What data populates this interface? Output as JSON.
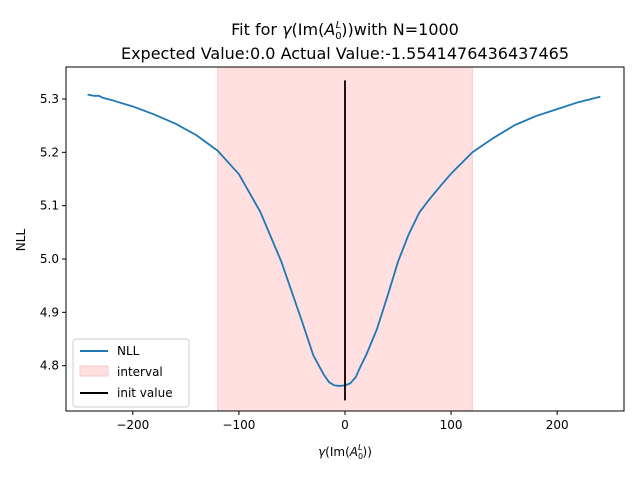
{
  "chart_data": {
    "type": "line",
    "title": {
      "prefix": "Fit for ",
      "gamma": "γ",
      "open": "(Im(",
      "sym": "A",
      "sub": "0",
      "sup": "L",
      "close": "))with N=1000"
    },
    "subtitle": "Expected Value:0.0 Actual Value:-1.5541476436437465",
    "xlabel": {
      "gamma": "γ",
      "open": "(Im(",
      "sym": "A",
      "sub": "0",
      "sup": "L",
      "close": "))"
    },
    "ylabel": "NLL",
    "xlim": [
      -263,
      263
    ],
    "ylim": [
      4.715,
      5.36
    ],
    "xticks": [
      -200,
      -100,
      0,
      100,
      200
    ],
    "xtick_labels": [
      "−200",
      "−100",
      "0",
      "100",
      "200"
    ],
    "yticks": [
      4.8,
      4.9,
      5.0,
      5.1,
      5.2,
      5.3
    ],
    "ytick_labels": [
      "4.8",
      "4.9",
      "5.0",
      "5.1",
      "5.2",
      "5.3"
    ],
    "grid": false,
    "legend_position": "lower-left",
    "series": [
      {
        "name": "NLL",
        "color": "#1f77b4",
        "x": [
          -242,
          -237,
          -232,
          -228,
          -220,
          -200,
          -180,
          -160,
          -140,
          -120,
          -100,
          -80,
          -60,
          -40,
          -30,
          -20,
          -15,
          -10,
          -5,
          0,
          5,
          10,
          15,
          20,
          30,
          40,
          50,
          60,
          70,
          80,
          90,
          100,
          110,
          120,
          140,
          160,
          180,
          200,
          220,
          240
        ],
        "y": [
          5.308,
          5.306,
          5.306,
          5.302,
          5.298,
          5.286,
          5.271,
          5.254,
          5.232,
          5.203,
          5.159,
          5.089,
          4.995,
          4.88,
          4.82,
          4.783,
          4.769,
          4.763,
          4.762,
          4.763,
          4.767,
          4.778,
          4.8,
          4.82,
          4.868,
          4.93,
          4.995,
          5.046,
          5.087,
          5.113,
          5.137,
          5.16,
          5.18,
          5.2,
          5.227,
          5.251,
          5.268,
          5.281,
          5.294,
          5.304
        ]
      }
    ],
    "interval": {
      "name": "interval",
      "x0": -120,
      "x1": 120,
      "color": "#ffdfdf"
    },
    "init_value": {
      "name": "init value",
      "x": 0,
      "y0": 4.735,
      "y1": 5.335,
      "color": "#000000"
    }
  }
}
